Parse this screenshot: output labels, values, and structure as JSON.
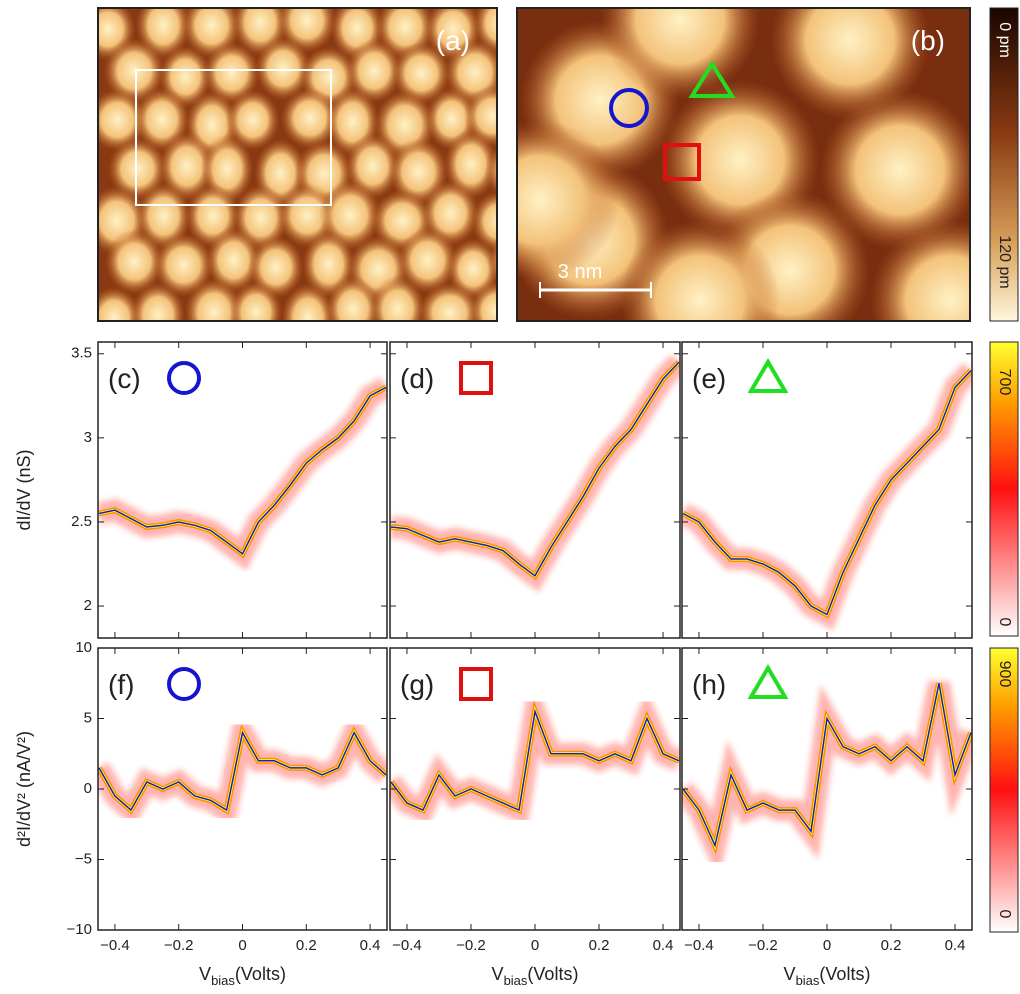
{
  "images": [
    {
      "label": "(a)"
    },
    {
      "label": "(b)",
      "scale_bar": "3 nm"
    }
  ],
  "colorbars": [
    {
      "labels": [
        "0 pm",
        "120 pm"
      ]
    },
    {
      "labels": [
        "700",
        "0"
      ]
    },
    {
      "labels": [
        "900",
        "0"
      ]
    }
  ],
  "chart_data": [
    {
      "type": "line",
      "label": "(c)",
      "y_label": "dI/dV (nS)",
      "show_xtick_labels": false,
      "show_ytick_labels": true,
      "x": [
        -0.45,
        -0.4,
        -0.35,
        -0.3,
        -0.25,
        -0.2,
        -0.15,
        -0.1,
        -0.05,
        0,
        0.05,
        0.1,
        0.15,
        0.2,
        0.25,
        0.3,
        0.35,
        0.4,
        0.45
      ],
      "values": [
        2.55,
        2.57,
        2.52,
        2.47,
        2.48,
        2.5,
        2.48,
        2.45,
        2.38,
        2.31,
        2.5,
        2.6,
        2.72,
        2.85,
        2.93,
        3.0,
        3.1,
        3.25,
        3.3
      ],
      "color": "#1a1acc",
      "xlim": [
        -0.453,
        0.453
      ],
      "ylim": [
        1.81,
        3.57
      ],
      "xticks": [
        -0.4,
        -0.2,
        0,
        0.2,
        0.4
      ],
      "yticks": [
        2,
        2.5,
        3,
        3.5
      ]
    },
    {
      "type": "line",
      "label": "(d)",
      "show_xtick_labels": false,
      "show_ytick_labels": false,
      "x": [
        -0.45,
        -0.4,
        -0.35,
        -0.3,
        -0.25,
        -0.2,
        -0.15,
        -0.1,
        -0.05,
        0,
        0.05,
        0.1,
        0.15,
        0.2,
        0.25,
        0.3,
        0.35,
        0.4,
        0.45
      ],
      "values": [
        2.47,
        2.46,
        2.42,
        2.38,
        2.4,
        2.38,
        2.36,
        2.33,
        2.25,
        2.18,
        2.35,
        2.5,
        2.65,
        2.82,
        2.95,
        3.05,
        3.2,
        3.35,
        3.45
      ],
      "color": "#1a1acc",
      "xlim": [
        -0.453,
        0.453
      ],
      "ylim": [
        1.81,
        3.57
      ],
      "xticks": [
        -0.4,
        -0.2,
        0,
        0.2,
        0.4
      ],
      "yticks": [
        2,
        2.5,
        3,
        3.5
      ]
    },
    {
      "type": "line",
      "label": "(e)",
      "show_xtick_labels": false,
      "show_ytick_labels": false,
      "x": [
        -0.45,
        -0.4,
        -0.35,
        -0.3,
        -0.25,
        -0.2,
        -0.15,
        -0.1,
        -0.05,
        0,
        0.05,
        0.1,
        0.15,
        0.2,
        0.25,
        0.3,
        0.35,
        0.4,
        0.45
      ],
      "values": [
        2.55,
        2.5,
        2.38,
        2.28,
        2.28,
        2.25,
        2.2,
        2.12,
        2.0,
        1.95,
        2.2,
        2.4,
        2.6,
        2.75,
        2.85,
        2.95,
        3.05,
        3.3,
        3.4
      ],
      "color": "#1a1acc",
      "xlim": [
        -0.453,
        0.453
      ],
      "ylim": [
        1.81,
        3.57
      ],
      "xticks": [
        -0.4,
        -0.2,
        0,
        0.2,
        0.4
      ],
      "yticks": [
        2,
        2.5,
        3,
        3.5
      ]
    },
    {
      "type": "line",
      "label": "(f)",
      "y_label": "d²I/dV² (nA/V²)",
      "x_label": [
        "V",
        "bias",
        "(Volts)"
      ],
      "show_xtick_labels": true,
      "show_ytick_labels": true,
      "x": [
        -0.45,
        -0.4,
        -0.35,
        -0.3,
        -0.25,
        -0.2,
        -0.15,
        -0.1,
        -0.05,
        0,
        0.05,
        0.1,
        0.15,
        0.2,
        0.25,
        0.3,
        0.35,
        0.4,
        0.45
      ],
      "values": [
        1.5,
        -0.5,
        -1.5,
        0.5,
        0,
        0.5,
        -0.5,
        -0.8,
        -1.5,
        4,
        2,
        2,
        1.5,
        1.5,
        1,
        1.5,
        4,
        2,
        1
      ],
      "color": "#1a1acc",
      "xlim": [
        -0.453,
        0.453
      ],
      "ylim": [
        -10,
        10
      ],
      "xticks": [
        {
          "value": -0.4,
          "label": "−0.4"
        },
        {
          "value": -0.2,
          "label": "−0.2"
        },
        0,
        0.2,
        0.4
      ],
      "yticks": [
        {
          "value": -10,
          "label": "−10"
        },
        {
          "value": -5,
          "label": "−5"
        },
        0,
        5,
        10
      ]
    },
    {
      "type": "line",
      "label": "(g)",
      "x_label": [
        "V",
        "bias",
        "(Volts)"
      ],
      "show_xtick_labels": true,
      "show_ytick_labels": false,
      "x": [
        -0.45,
        -0.4,
        -0.35,
        -0.3,
        -0.25,
        -0.2,
        -0.15,
        -0.1,
        -0.05,
        0,
        0.05,
        0.1,
        0.15,
        0.2,
        0.25,
        0.3,
        0.35,
        0.4,
        0.45
      ],
      "values": [
        0.5,
        -1,
        -1.5,
        1,
        -0.5,
        0,
        -0.5,
        -1,
        -1.5,
        5.5,
        2.5,
        2.5,
        2.5,
        2,
        2.5,
        2,
        5,
        2.5,
        2
      ],
      "color": "#1a1acc",
      "xlim": [
        -0.453,
        0.453
      ],
      "ylim": [
        -10,
        10
      ],
      "xticks": [
        {
          "value": -0.4,
          "label": "−0.4"
        },
        {
          "value": -0.2,
          "label": "−0.2"
        },
        0,
        0.2,
        0.4
      ],
      "yticks": [
        -10,
        -5,
        0,
        5,
        10
      ]
    },
    {
      "type": "line",
      "label": "(h)",
      "x_label": [
        "V",
        "bias",
        "(Volts)"
      ],
      "show_xtick_labels": true,
      "show_ytick_labels": false,
      "x": [
        -0.45,
        -0.4,
        -0.35,
        -0.3,
        -0.25,
        -0.2,
        -0.15,
        -0.1,
        -0.05,
        0,
        0.05,
        0.1,
        0.15,
        0.2,
        0.25,
        0.3,
        0.35,
        0.4,
        0.45
      ],
      "values": [
        0,
        -1.5,
        -4,
        1,
        -1.5,
        -1,
        -1.5,
        -1.5,
        -3,
        5,
        3,
        2.5,
        3,
        2,
        3,
        2,
        7.5,
        1,
        4
      ],
      "color": "#1a1acc",
      "xlim": [
        -0.453,
        0.453
      ],
      "ylim": [
        -10,
        10
      ],
      "xticks": [
        {
          "value": -0.4,
          "label": "−0.4"
        },
        {
          "value": -0.2,
          "label": "−0.2"
        },
        0,
        0.2,
        0.4
      ],
      "yticks": [
        -10,
        -5,
        0,
        5,
        10
      ]
    }
  ]
}
